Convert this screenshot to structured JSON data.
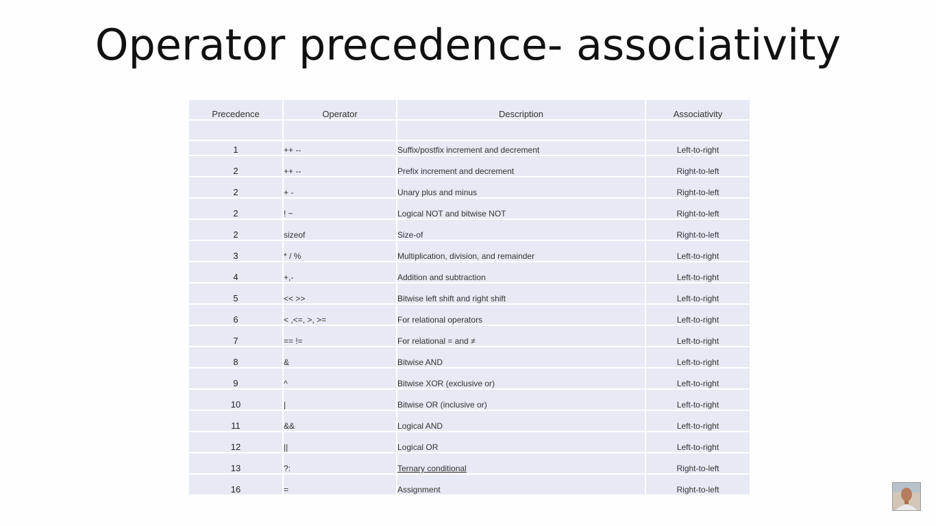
{
  "slide": {
    "title": "Operator precedence- associativity"
  },
  "table": {
    "headers": {
      "precedence": "Precedence",
      "operator": "Operator",
      "description": "Description",
      "associativity": "Associativity"
    },
    "rows": [
      {
        "precedence": "1",
        "operator": "++ --",
        "description": "Suffix/postfix increment and decrement",
        "associativity": "Left-to-right"
      },
      {
        "precedence": "2",
        "operator": "++ --",
        "description": "Prefix increment and decrement",
        "associativity": "Right-to-left"
      },
      {
        "precedence": "2",
        "operator": "+ -",
        "description": "Unary plus and minus",
        "associativity": "Right-to-left"
      },
      {
        "precedence": "2",
        "operator": "! ~",
        "description": "Logical NOT and bitwise NOT",
        "associativity": "Right-to-left"
      },
      {
        "precedence": "2",
        "operator": "sizeof",
        "description": "Size-of",
        "associativity": "Right-to-left"
      },
      {
        "precedence": "3",
        "operator": "* / %",
        "description": "Multiplication, division, and remainder",
        "associativity": "Left-to-right"
      },
      {
        "precedence": "4",
        "operator": "+,-",
        "description": "Addition and subtraction",
        "associativity": "Left-to-right"
      },
      {
        "precedence": "5",
        "operator": "<< >>",
        "description": "Bitwise left shift and right shift",
        "associativity": "Left-to-right"
      },
      {
        "precedence": "6",
        "operator": "< ,<=, >, >=",
        "description": "For relational operators",
        "associativity": "Left-to-right"
      },
      {
        "precedence": "7",
        "operator": "==  !=",
        "description": "For relational = and ≠",
        "associativity": "Left-to-right"
      },
      {
        "precedence": "8",
        "operator": "&",
        "description": "Bitwise AND",
        "associativity": "Left-to-right"
      },
      {
        "precedence": "9",
        "operator": "^",
        "description": "Bitwise XOR (exclusive or)",
        "associativity": "Left-to-right"
      },
      {
        "precedence": "10",
        "operator": "|",
        "description": "Bitwise OR (inclusive or)",
        "associativity": "Left-to-right"
      },
      {
        "precedence": "11",
        "operator": "&&",
        "description": "Logical AND",
        "associativity": "Left-to-right"
      },
      {
        "precedence": "12",
        "operator": "||",
        "description": "Logical OR",
        "associativity": "Left-to-right"
      },
      {
        "precedence": "13",
        "operator": "?:",
        "description": "Ternary conditional",
        "associativity": "Right-to-left"
      },
      {
        "precedence": "16",
        "operator": "=",
        "description": "Assignment",
        "associativity": "Right-to-left"
      }
    ]
  },
  "colors": {
    "table_cell_bg": "#e7eaf4",
    "text": "#333333",
    "title": "#111111"
  },
  "icons": {
    "presenter": "presenter-webcam-thumbnail"
  }
}
